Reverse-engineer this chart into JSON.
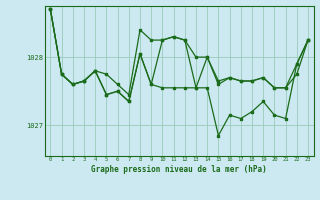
{
  "xlabel": "Graphe pression niveau de la mer (hPa)",
  "bg_color": "#cce8f0",
  "plot_bg_color": "#cce8f0",
  "grid_color": "#99ccbb",
  "line_color": "#1a6b1a",
  "x_ticks": [
    0,
    1,
    2,
    3,
    4,
    5,
    6,
    7,
    8,
    9,
    10,
    11,
    12,
    13,
    14,
    15,
    16,
    17,
    18,
    19,
    20,
    21,
    22,
    23
  ],
  "y_ticks": [
    1027,
    1028
  ],
  "ylim": [
    1026.55,
    1028.75
  ],
  "xlim": [
    -0.5,
    23.5
  ],
  "series": [
    [
      1028.7,
      1027.75,
      1027.6,
      1027.65,
      1027.8,
      1027.75,
      1027.6,
      1027.45,
      1028.4,
      1028.25,
      1028.25,
      1028.3,
      1028.25,
      1028.0,
      1028.0,
      1027.65,
      1027.7,
      1027.65,
      1027.65,
      1027.7,
      1027.55,
      1027.55,
      1027.75,
      1028.25
    ],
    [
      1028.7,
      1027.75,
      1027.6,
      1027.65,
      1027.8,
      1027.45,
      1027.5,
      1027.35,
      1028.05,
      1027.6,
      1028.25,
      1028.3,
      1028.25,
      1027.55,
      1028.0,
      1027.6,
      1027.7,
      1027.65,
      1027.65,
      1027.7,
      1027.55,
      1027.55,
      1027.9,
      1028.25
    ],
    [
      1028.7,
      1027.75,
      1027.6,
      1027.65,
      1027.8,
      1027.45,
      1027.5,
      1027.35,
      1028.05,
      1027.6,
      1027.55,
      1027.55,
      1027.55,
      1027.55,
      1027.55,
      1026.85,
      1027.15,
      1027.1,
      1027.2,
      1027.35,
      1027.15,
      1027.1,
      1027.9,
      1028.25
    ]
  ]
}
